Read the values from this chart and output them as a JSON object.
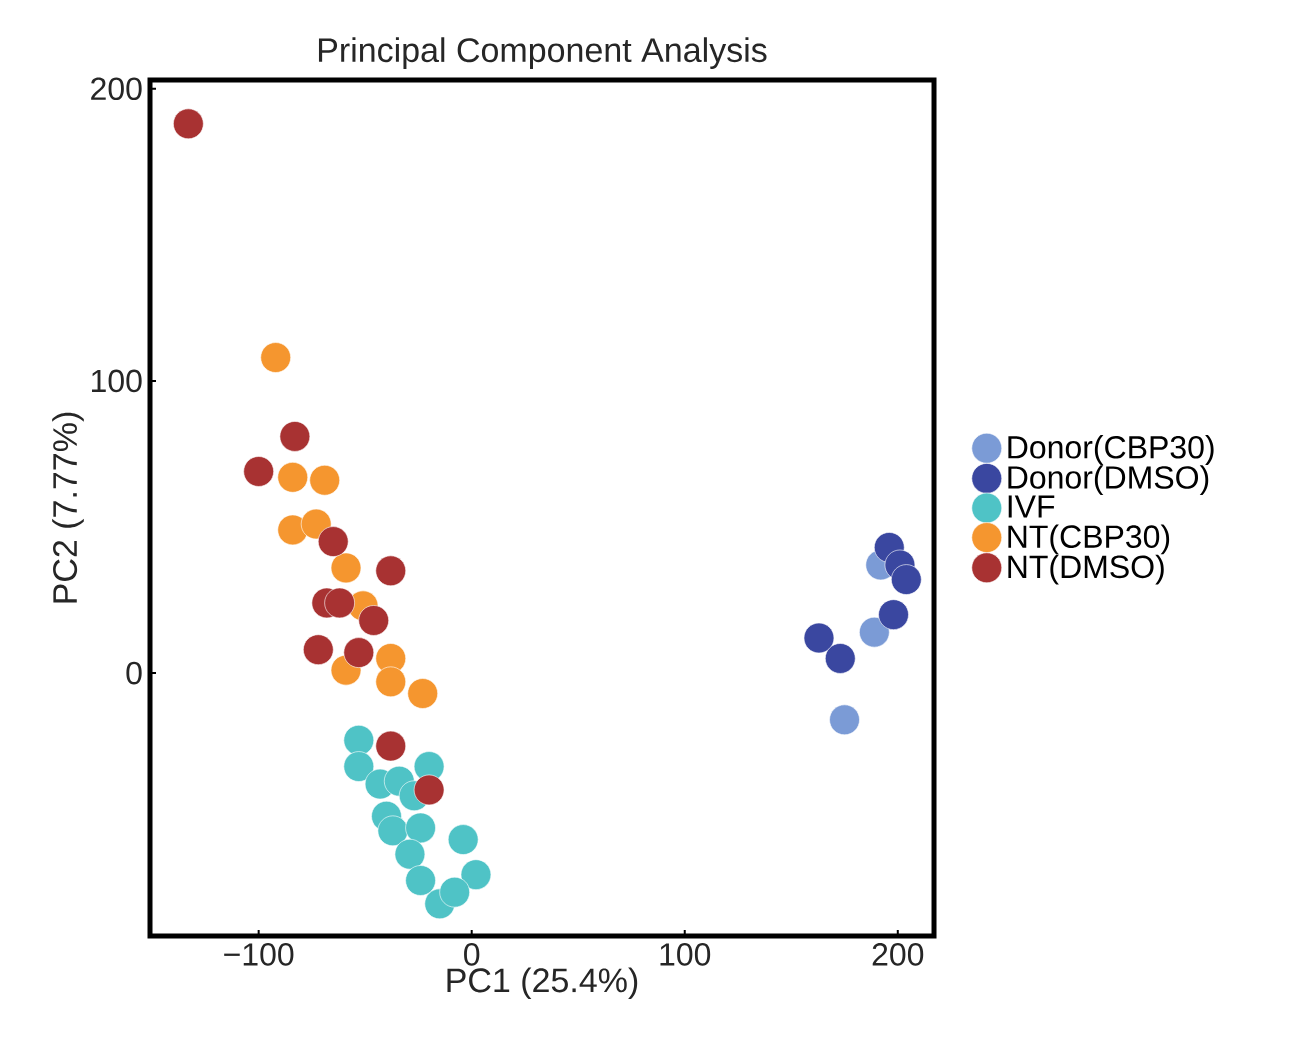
{
  "chart_data": {
    "type": "scatter",
    "title": "Principal Component Analysis",
    "xlabel": "PC1 (25.4%)",
    "ylabel": "PC2 (7.77%)",
    "xlim": [
      -151,
      217
    ],
    "ylim": [
      -90,
      203
    ],
    "xticks": [
      {
        "value": -100,
        "label": "−100"
      },
      0,
      100,
      200
    ],
    "yticks": [
      0,
      100,
      200
    ],
    "grid": false,
    "legend": "right",
    "marker": "circle",
    "series": [
      {
        "name": "Donor(CBP30)",
        "color": "#7b9bd6",
        "x": [
          192,
          189,
          175
        ],
        "values": [
          37,
          14,
          -16
        ]
      },
      {
        "name": "Donor(DMSO)",
        "color": "#3a47a0",
        "x": [
          196,
          201,
          204,
          198,
          163,
          173
        ],
        "values": [
          43,
          37,
          32,
          20,
          12,
          5
        ]
      },
      {
        "name": "IVF",
        "color": "#4fc3c6",
        "x": [
          -53,
          -53,
          -20,
          -43,
          -34,
          -27,
          -40,
          -37,
          -24,
          -4,
          -29,
          -24,
          2,
          -15,
          -8
        ],
        "values": [
          -23,
          -32,
          -32,
          -38,
          -37,
          -42,
          -49,
          -54,
          -53,
          -57,
          -62,
          -71,
          -69,
          -79,
          -75
        ]
      },
      {
        "name": "NT(CBP30)",
        "color": "#f5962f",
        "x": [
          -92,
          -84,
          -69,
          -84,
          -73,
          -59,
          -51,
          -38,
          -59,
          -38,
          -23
        ],
        "values": [
          108,
          67,
          66,
          49,
          51,
          36,
          23,
          5,
          1,
          -3,
          -7
        ]
      },
      {
        "name": "NT(DMSO)",
        "color": "#a83232",
        "x": [
          -133,
          -83,
          -100,
          -65,
          -38,
          -68,
          -62,
          -46,
          -72,
          -53,
          -38,
          -20
        ],
        "values": [
          188,
          81,
          69,
          45,
          35,
          24,
          24,
          18,
          8,
          7,
          -25,
          -40
        ]
      }
    ]
  }
}
